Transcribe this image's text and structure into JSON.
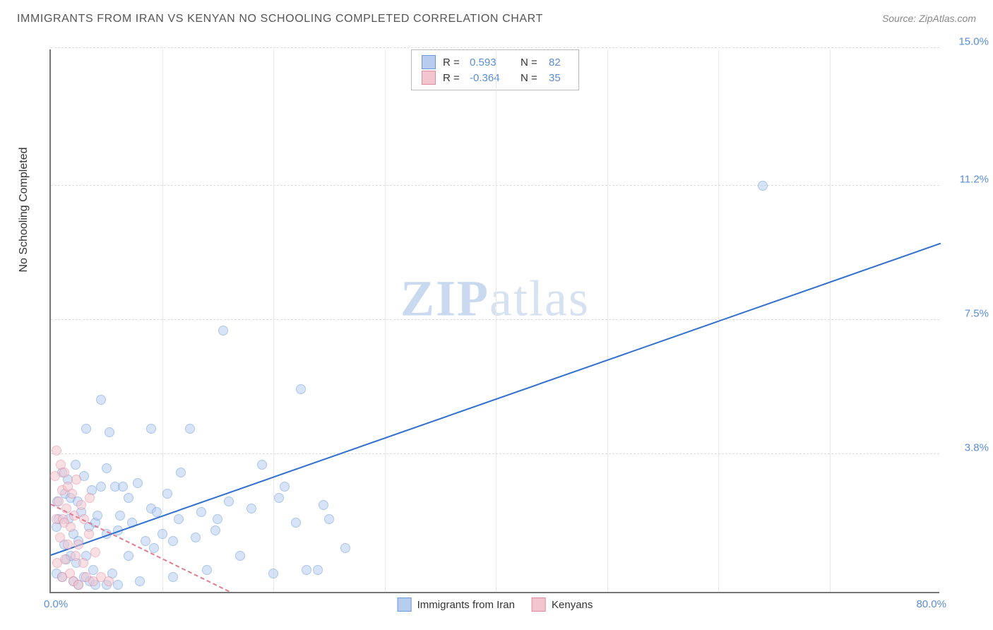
{
  "title": "IMMIGRANTS FROM IRAN VS KENYAN NO SCHOOLING COMPLETED CORRELATION CHART",
  "source": "Source: ZipAtlas.com",
  "y_axis_label": "No Schooling Completed",
  "watermark_zip": "ZIP",
  "watermark_atlas": "atlas",
  "chart": {
    "type": "scatter",
    "xlim": [
      0,
      80
    ],
    "ylim": [
      0,
      15
    ],
    "x_tick_min": "0.0%",
    "x_tick_max": "80.0%",
    "y_ticks": [
      {
        "v": 15.0,
        "label": "15.0%"
      },
      {
        "v": 11.2,
        "label": "11.2%"
      },
      {
        "v": 7.5,
        "label": "7.5%"
      },
      {
        "v": 3.8,
        "label": "3.8%"
      }
    ],
    "x_grid": [
      10,
      20,
      30,
      40,
      50,
      60,
      70
    ],
    "background_color": "#ffffff",
    "grid_color": "#e2e2e2",
    "axis_color": "#777777",
    "tick_color": "#5b8dd6",
    "point_radius": 7,
    "point_opacity": 0.55,
    "series": [
      {
        "name": "Immigrants from Iran",
        "color_fill": "#b7cdef",
        "color_stroke": "#6a98d8",
        "r": "0.593",
        "n": "82",
        "trend": {
          "x1": 0,
          "y1": 1.0,
          "x2": 80,
          "y2": 9.6,
          "color": "#2f6fd0",
          "dash": "solid"
        },
        "points": [
          [
            0.5,
            1.8
          ],
          [
            0.6,
            2.5
          ],
          [
            0.5,
            0.5
          ],
          [
            0.7,
            2.0
          ],
          [
            1.0,
            3.3
          ],
          [
            1.0,
            0.4
          ],
          [
            1.2,
            1.3
          ],
          [
            1.3,
            2.7
          ],
          [
            1.4,
            0.9
          ],
          [
            1.5,
            3.1
          ],
          [
            1.6,
            2.0
          ],
          [
            1.8,
            1.0
          ],
          [
            1.8,
            2.6
          ],
          [
            2.0,
            0.3
          ],
          [
            2.0,
            1.6
          ],
          [
            2.2,
            3.5
          ],
          [
            2.3,
            0.8
          ],
          [
            2.4,
            2.5
          ],
          [
            2.5,
            1.4
          ],
          [
            2.5,
            0.2
          ],
          [
            2.7,
            2.2
          ],
          [
            3.0,
            3.2
          ],
          [
            3.0,
            0.4
          ],
          [
            3.2,
            4.5
          ],
          [
            3.2,
            1.0
          ],
          [
            3.4,
            1.8
          ],
          [
            3.5,
            0.3
          ],
          [
            3.7,
            2.8
          ],
          [
            3.8,
            0.6
          ],
          [
            4.0,
            1.9
          ],
          [
            4.0,
            0.2
          ],
          [
            4.2,
            2.1
          ],
          [
            4.5,
            2.9
          ],
          [
            4.5,
            5.3
          ],
          [
            5.0,
            0.2
          ],
          [
            5.0,
            1.6
          ],
          [
            5.0,
            3.4
          ],
          [
            5.3,
            4.4
          ],
          [
            5.5,
            0.5
          ],
          [
            5.8,
            2.9
          ],
          [
            6.0,
            1.7
          ],
          [
            6.0,
            0.2
          ],
          [
            6.2,
            2.1
          ],
          [
            6.5,
            2.9
          ],
          [
            7.0,
            1.0
          ],
          [
            7.0,
            2.6
          ],
          [
            7.3,
            1.9
          ],
          [
            7.8,
            3.0
          ],
          [
            8.0,
            0.3
          ],
          [
            8.5,
            1.4
          ],
          [
            9.0,
            4.5
          ],
          [
            9.0,
            2.3
          ],
          [
            9.3,
            1.2
          ],
          [
            9.5,
            2.2
          ],
          [
            10.0,
            1.6
          ],
          [
            10.5,
            2.7
          ],
          [
            11.0,
            0.4
          ],
          [
            11.0,
            1.4
          ],
          [
            11.5,
            2.0
          ],
          [
            11.7,
            3.3
          ],
          [
            12.5,
            4.5
          ],
          [
            13.0,
            1.5
          ],
          [
            13.5,
            2.2
          ],
          [
            14.0,
            0.6
          ],
          [
            14.8,
            1.7
          ],
          [
            15.0,
            2.0
          ],
          [
            15.5,
            7.2
          ],
          [
            16.0,
            2.5
          ],
          [
            17.0,
            1.0
          ],
          [
            18.0,
            2.3
          ],
          [
            19.0,
            3.5
          ],
          [
            20.0,
            0.5
          ],
          [
            20.5,
            2.6
          ],
          [
            21.0,
            2.9
          ],
          [
            22.0,
            1.9
          ],
          [
            22.5,
            5.6
          ],
          [
            23.0,
            0.6
          ],
          [
            24.0,
            0.6
          ],
          [
            24.5,
            2.4
          ],
          [
            25.0,
            2.0
          ],
          [
            26.5,
            1.2
          ],
          [
            64.0,
            11.2
          ]
        ]
      },
      {
        "name": "Kenyans",
        "color_fill": "#f3c6cf",
        "color_stroke": "#e48aa0",
        "r": "-0.364",
        "n": "35",
        "trend": {
          "x1": 0,
          "y1": 2.4,
          "x2": 16,
          "y2": 0.0,
          "color": "#e27a90",
          "dash": "dashed"
        },
        "points": [
          [
            0.4,
            3.2
          ],
          [
            0.5,
            2.0
          ],
          [
            0.5,
            3.9
          ],
          [
            0.6,
            0.8
          ],
          [
            0.7,
            2.5
          ],
          [
            0.8,
            1.5
          ],
          [
            0.9,
            3.5
          ],
          [
            1.0,
            2.8
          ],
          [
            1.0,
            0.4
          ],
          [
            1.1,
            2.0
          ],
          [
            1.2,
            1.9
          ],
          [
            1.2,
            3.3
          ],
          [
            1.3,
            0.9
          ],
          [
            1.4,
            2.3
          ],
          [
            1.5,
            1.3
          ],
          [
            1.5,
            2.9
          ],
          [
            1.7,
            0.5
          ],
          [
            1.8,
            1.8
          ],
          [
            1.9,
            2.7
          ],
          [
            2.0,
            0.3
          ],
          [
            2.1,
            2.1
          ],
          [
            2.2,
            1.0
          ],
          [
            2.3,
            3.1
          ],
          [
            2.5,
            1.3
          ],
          [
            2.5,
            0.2
          ],
          [
            2.7,
            2.4
          ],
          [
            2.9,
            0.8
          ],
          [
            3.0,
            2.0
          ],
          [
            3.2,
            0.4
          ],
          [
            3.4,
            1.6
          ],
          [
            3.5,
            2.6
          ],
          [
            3.8,
            0.3
          ],
          [
            4.0,
            1.1
          ],
          [
            4.5,
            0.4
          ],
          [
            5.2,
            0.3
          ]
        ]
      }
    ]
  },
  "legend_bottom": [
    {
      "label": "Immigrants from Iran",
      "fill": "#b7cdef",
      "stroke": "#6a98d8"
    },
    {
      "label": "Kenyans",
      "fill": "#f3c6cf",
      "stroke": "#e48aa0"
    }
  ],
  "legend_top_labels": {
    "r": "R =",
    "n": "N ="
  }
}
